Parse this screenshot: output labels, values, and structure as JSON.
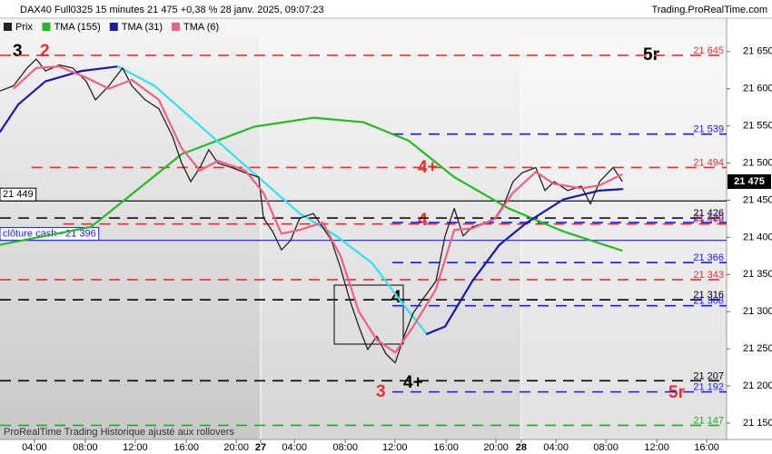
{
  "chart_data": {
    "type": "line",
    "title": "DAX40 Full0325 15 minutes 21 475 +0,38 % 28 janv. 2025, 09:07:23",
    "source": "Trading.ProRealTime.com",
    "footer": "ProRealTime Trading  Historique ajusté aux rollovers",
    "xlim": [
      0,
      230
    ],
    "ylim": [
      21128,
      21695
    ],
    "xticks": [
      {
        "value": 10.9,
        "label": "04:00"
      },
      {
        "value": 27,
        "label": "08:00"
      },
      {
        "value": 42.8,
        "label": "12:00"
      },
      {
        "value": 59,
        "label": "16:00"
      },
      {
        "value": 74.8,
        "label": "20:00"
      },
      {
        "value": 82.5,
        "label": "27"
      },
      {
        "value": 93.2,
        "label": "04:00"
      },
      {
        "value": 109.3,
        "label": "08:00"
      },
      {
        "value": 125,
        "label": "12:00"
      },
      {
        "value": 141.2,
        "label": "16:00"
      },
      {
        "value": 157,
        "label": "20:00"
      },
      {
        "value": 165,
        "label": "28"
      },
      {
        "value": 176,
        "label": "04:00"
      },
      {
        "value": 191.8,
        "label": "08:00"
      },
      {
        "value": 207.9,
        "label": "12:00"
      },
      {
        "value": 223.7,
        "label": "16:00"
      }
    ],
    "yticks": [
      {
        "value": 21650,
        "label": "21 650"
      },
      {
        "value": 21600,
        "label": "21 600"
      },
      {
        "value": 21550,
        "label": "21 550"
      },
      {
        "value": 21500,
        "label": "21 500"
      },
      {
        "value": 21450,
        "label": "21 450"
      },
      {
        "value": 21400,
        "label": "21 400"
      },
      {
        "value": 21350,
        "label": "21 350"
      },
      {
        "value": 21300,
        "label": "21 300"
      },
      {
        "value": 21250,
        "label": "21 250"
      },
      {
        "value": 21200,
        "label": "21 200"
      },
      {
        "value": 21150,
        "label": "21 150"
      }
    ],
    "series": [
      {
        "name": "Prix",
        "color": "#222222",
        "x": [
          0,
          4.3,
          8.6,
          11.5,
          14.4,
          18.7,
          23,
          27.3,
          30.2,
          34.5,
          38.8,
          41.7,
          46,
          50.3,
          54.6,
          57.5,
          60.4,
          63.3,
          66.1,
          69,
          73.3,
          77.6,
          81.9,
          83.4,
          86.3,
          89.1,
          92,
          94.9,
          99.2,
          102.1,
          104.9,
          107.8,
          110.7,
          113.6,
          116.4,
          119.3,
          122.2,
          125.1,
          127.9,
          130.8,
          133.7,
          138,
          140.9,
          143.8,
          146.6,
          149.5,
          153.8,
          156.7,
          159.6,
          162.4,
          165.3,
          169.6,
          172.5,
          175.4,
          179.7,
          184,
          186.9,
          189.8,
          194.1,
          197
        ],
        "values": [
          21597,
          21604,
          21628,
          21640,
          21624,
          21632,
          21628,
          21610,
          21585,
          21604,
          21628,
          21604,
          21585,
          21573,
          21536,
          21500,
          21475,
          21494,
          21518,
          21500,
          21494,
          21487,
          21481,
          21426,
          21408,
          21383,
          21396,
          21426,
          21432,
          21414,
          21396,
          21359,
          21316,
          21280,
          21249,
          21267,
          21243,
          21231,
          21267,
          21298,
          21316,
          21341,
          21402,
          21439,
          21402,
          21414,
          21420,
          21426,
          21445,
          21475,
          21487,
          21494,
          21463,
          21475,
          21463,
          21469,
          21445,
          21475,
          21494,
          21475
        ]
      },
      {
        "name": "TMA (155)",
        "color": "#22bb22",
        "x": [
          0,
          28.8,
          57.5,
          80.5,
          99.2,
          115,
          129.4,
          143.8,
          161,
          178.3,
          197
        ],
        "values": [
          21390,
          21414,
          21512,
          21549,
          21561,
          21555,
          21530,
          21481,
          21439,
          21408,
          21382
        ]
      },
      {
        "name": "TMA (31)",
        "color": "#1a1aaa",
        "color_falling": "#33e0f0",
        "x": [
          0,
          5.8,
          14.4,
          25.9,
          37.4,
          48.9,
          60.4,
          71.9,
          83.4,
          94.9,
          106.4,
          117.9,
          126.5,
          135.1,
          140.9,
          149.5,
          158.1,
          166.8,
          178.3,
          189.8,
          197
        ],
        "values": [
          21542,
          21579,
          21610,
          21624,
          21630,
          21604,
          21561,
          21518,
          21475,
          21432,
          21402,
          21365,
          21316,
          21270,
          21280,
          21341,
          21390,
          21420,
          21451,
          21463,
          21465
        ]
      },
      {
        "name": "TMA (6)",
        "color": "#f06080",
        "x": [
          4.3,
          11.5,
          18.7,
          27.3,
          34.5,
          41.7,
          50.3,
          57.5,
          63.3,
          69,
          77.6,
          83.4,
          89.1,
          94.9,
          102.1,
          107.8,
          113.6,
          119.3,
          125.1,
          130.8,
          138,
          143.8,
          149.5,
          156.7,
          162.4,
          169.6,
          175.4,
          184,
          189.8,
          197
        ],
        "values": [
          21600,
          21628,
          21630,
          21615,
          21600,
          21612,
          21585,
          21520,
          21490,
          21503,
          21490,
          21460,
          21405,
          21410,
          21420,
          21375,
          21300,
          21262,
          21245,
          21280,
          21330,
          21410,
          21412,
          21425,
          21460,
          21488,
          21472,
          21466,
          21470,
          21485
        ]
      }
    ],
    "levels": [
      {
        "value": 21645,
        "label": "21 645",
        "color": "#e53030",
        "x0": 0
      },
      {
        "value": 21539,
        "label": "21 539",
        "color": "#1a1aff",
        "x0": 124.2
      },
      {
        "value": 21494,
        "label": "21 494",
        "color": "#e53030",
        "x0": 10
      },
      {
        "value": 21426,
        "label": "21 426",
        "color": "#000000",
        "x0": 0
      },
      {
        "value": 21420,
        "label": "21 420",
        "color": "#1a1aff",
        "x0": 124.2
      },
      {
        "value": 21418,
        "label": "21 418",
        "color": "#e53030",
        "x0": 20
      },
      {
        "value": 21366,
        "label": "21 366",
        "color": "#1a1aff",
        "x0": 124.2
      },
      {
        "value": 21343,
        "label": "21 343",
        "color": "#e53030",
        "x0": 0
      },
      {
        "value": 21316,
        "label": "21 316",
        "color": "#000000",
        "x0": 0
      },
      {
        "value": 21308,
        "label": "21 308",
        "color": "#1a1aff",
        "x0": 124.2
      },
      {
        "value": 21207,
        "label": "21 207",
        "color": "#000000",
        "x0": 0
      },
      {
        "value": 21192,
        "label": "21 192",
        "color": "#1a1aff",
        "x0": 124.2
      },
      {
        "value": 21147,
        "label": "21 147",
        "color": "#22aa22",
        "x0": 0
      }
    ],
    "solid_levels": [
      {
        "value": 21449,
        "label": "21 449",
        "color": "#000000"
      },
      {
        "value": 21396,
        "label": "clôture cash -  21 396",
        "color": "#1a1aff"
      }
    ],
    "last_price": {
      "value": 21475,
      "label": "21 475"
    },
    "annotations": [
      {
        "text": "3",
        "color": "#000000"
      },
      {
        "text": "2",
        "color": "#e53030"
      },
      {
        "text": "5r",
        "color": "#000000"
      },
      {
        "text": "4+",
        "color": "#e53030"
      },
      {
        "text": "4",
        "color": "#e53030"
      },
      {
        "text": "4",
        "color": "#000000"
      },
      {
        "text": "3",
        "color": "#e53030"
      },
      {
        "text": "4+",
        "color": "#000000"
      },
      {
        "text": "5r",
        "color": "#e53030"
      }
    ]
  }
}
